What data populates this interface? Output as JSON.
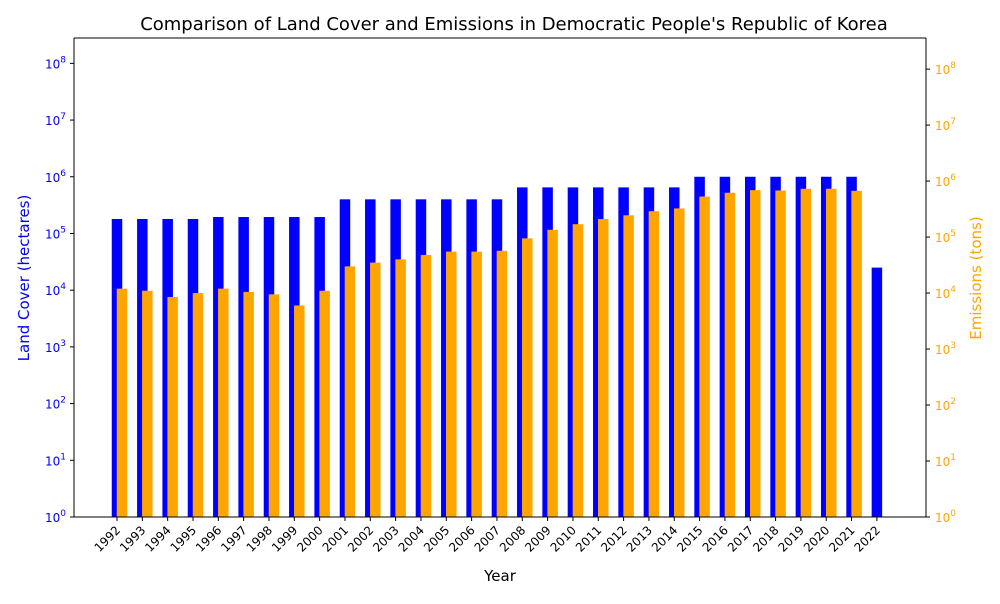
{
  "chart_data": {
    "type": "bar",
    "title": "Comparison of Land Cover and Emissions in Democratic People's Republic of Korea",
    "xlabel": "Year",
    "ylabel_left": "Land Cover (hectares)",
    "ylabel_right": "Emissions (tons)",
    "y_scale": "log",
    "ylim_left": [
      1,
      280000000
    ],
    "ylim_right": [
      1,
      360000000
    ],
    "tick_labels": [
      "10^0",
      "10^1",
      "10^2",
      "10^3",
      "10^4",
      "10^5",
      "10^6",
      "10^7",
      "10^8"
    ],
    "grid": false,
    "colors": {
      "land_cover": "#0000ff",
      "emissions": "#ffa500",
      "axis": "#000000"
    },
    "categories": [
      "1992",
      "1993",
      "1994",
      "1995",
      "1996",
      "1997",
      "1998",
      "1999",
      "2000",
      "2001",
      "2002",
      "2003",
      "2004",
      "2005",
      "2006",
      "2007",
      "2008",
      "2009",
      "2010",
      "2011",
      "2012",
      "2013",
      "2014",
      "2015",
      "2016",
      "2017",
      "2018",
      "2019",
      "2020",
      "2021",
      "2022"
    ],
    "series": [
      {
        "name": "Land Cover (hectares)",
        "axis": "left",
        "color": "#0000ff",
        "values": [
          180000,
          180000,
          180000,
          180000,
          195000,
          195000,
          195000,
          195000,
          195000,
          400000,
          400000,
          400000,
          400000,
          400000,
          400000,
          400000,
          650000,
          650000,
          650000,
          650000,
          650000,
          650000,
          650000,
          1000000,
          1000000,
          1000000,
          1000000,
          1000000,
          1000000,
          1000000,
          25000
        ]
      },
      {
        "name": "Emissions (tons)",
        "axis": "right",
        "color": "#ffa500",
        "values": [
          12000,
          11000,
          8500,
          10000,
          12000,
          10500,
          9500,
          6000,
          11000,
          30000,
          35000,
          40000,
          48000,
          55000,
          55000,
          57000,
          95000,
          135000,
          170000,
          210000,
          245000,
          290000,
          325000,
          530000,
          620000,
          690000,
          680000,
          730000,
          730000,
          670000,
          null
        ]
      }
    ]
  }
}
